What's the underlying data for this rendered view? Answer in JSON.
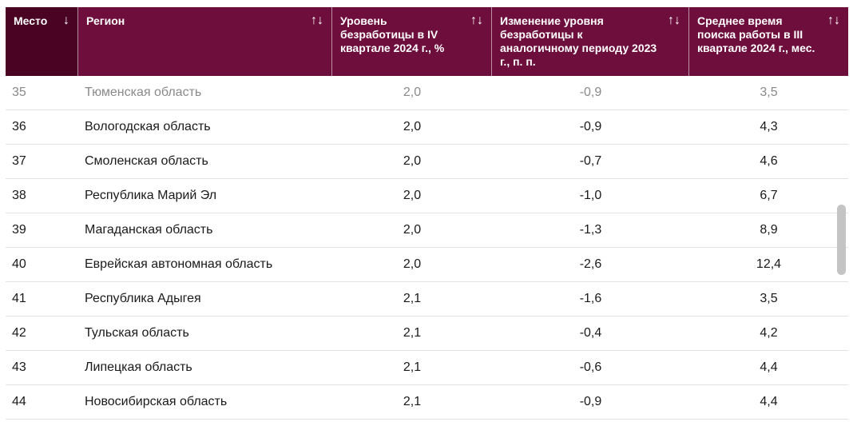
{
  "header": {
    "columns": [
      {
        "label": "Место",
        "sort": "↓",
        "key": "place"
      },
      {
        "label": "Регион",
        "sort": "↑↓",
        "key": "region"
      },
      {
        "label": "Уровень безработицы в IV квартале 2024 г., %",
        "sort": "↑↓",
        "key": "rate"
      },
      {
        "label": "Изменение уровня безработицы к аналогичному периоду 2023 г., п. п.",
        "sort": "↑↓",
        "key": "change"
      },
      {
        "label": "Среднее время поиска работы в III квартале 2024 г., мес.",
        "sort": "↑↓",
        "key": "search_time"
      }
    ]
  },
  "rows": [
    {
      "place": "35",
      "region": "Тюменская область",
      "rate": "2,0",
      "change": "-0,9",
      "search_time": "3,5"
    },
    {
      "place": "36",
      "region": "Вологодская область",
      "rate": "2,0",
      "change": "-0,9",
      "search_time": "4,3"
    },
    {
      "place": "37",
      "region": "Смоленская область",
      "rate": "2,0",
      "change": "-0,7",
      "search_time": "4,6"
    },
    {
      "place": "38",
      "region": "Республика Марий Эл",
      "rate": "2,0",
      "change": "-1,0",
      "search_time": "6,7"
    },
    {
      "place": "39",
      "region": "Магаданская область",
      "rate": "2,0",
      "change": "-1,3",
      "search_time": "8,9"
    },
    {
      "place": "40",
      "region": "Еврейская автономная область",
      "rate": "2,0",
      "change": "-2,6",
      "search_time": "12,4"
    },
    {
      "place": "41",
      "region": "Республика Адыгея",
      "rate": "2,1",
      "change": "-1,6",
      "search_time": "3,5"
    },
    {
      "place": "42",
      "region": "Тульская область",
      "rate": "2,1",
      "change": "-0,4",
      "search_time": "4,2"
    },
    {
      "place": "43",
      "region": "Липецкая область",
      "rate": "2,1",
      "change": "-0,6",
      "search_time": "4,4"
    },
    {
      "place": "44",
      "region": "Новосибирская область",
      "rate": "2,1",
      "change": "-0,9",
      "search_time": "4,4"
    }
  ],
  "colors": {
    "header_bg": "#6e0e3c",
    "sorted_header_bg": "#4a0322",
    "header_text": "#ffffff",
    "row_border": "#e3e3e3"
  }
}
